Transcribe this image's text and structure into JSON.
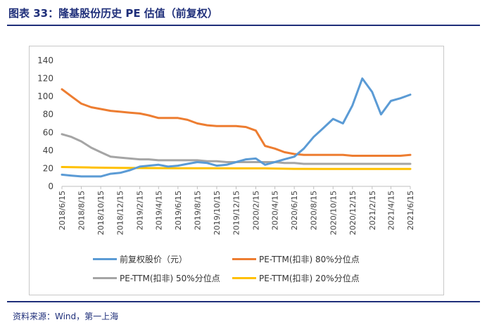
{
  "title": "图表 33：隆基股份历史 PE 估值（前复权）",
  "source": "资料来源：Wind，第一上海",
  "chart_data": {
    "type": "line",
    "title": "",
    "xlabel": "",
    "ylabel": "",
    "ylim": [
      0,
      140
    ],
    "yticks": [
      0,
      20,
      40,
      60,
      80,
      100,
      120,
      140
    ],
    "grid": false,
    "legend_position": "bottom",
    "x_ticks": [
      "2018/6/15",
      "2018/8/15",
      "2018/10/15",
      "2018/12/15",
      "2019/2/15",
      "2019/4/15",
      "2019/6/15",
      "2019/8/15",
      "2019/10/15",
      "2019/12/15",
      "2020/2/15",
      "2020/4/15",
      "2020/6/15",
      "2020/8/15",
      "2020/10/15",
      "2020/12/15",
      "2021/2/15",
      "2021/4/15",
      "2021/6/15"
    ],
    "series": [
      {
        "name": "前复权股价（元）",
        "color": "#5b9bd5",
        "x": [
          "2018/6/15",
          "2018/7/15",
          "2018/8/15",
          "2018/9/15",
          "2018/10/15",
          "2018/11/15",
          "2018/12/15",
          "2019/1/15",
          "2019/2/15",
          "2019/3/15",
          "2019/4/15",
          "2019/5/15",
          "2019/6/15",
          "2019/7/15",
          "2019/8/15",
          "2019/9/15",
          "2019/10/15",
          "2019/11/15",
          "2019/12/15",
          "2020/1/15",
          "2020/2/15",
          "2020/3/15",
          "2020/4/15",
          "2020/5/15",
          "2020/6/15",
          "2020/7/15",
          "2020/8/15",
          "2020/9/15",
          "2020/10/15",
          "2020/11/15",
          "2020/12/15",
          "2021/1/15",
          "2021/2/15",
          "2021/3/15",
          "2021/4/15",
          "2021/5/15",
          "2021/6/15"
        ],
        "values": [
          13,
          12,
          11,
          11,
          11,
          14,
          15,
          18,
          22,
          23,
          24,
          22,
          23,
          25,
          27,
          26,
          23,
          24,
          27,
          30,
          31,
          24,
          27,
          30,
          33,
          42,
          55,
          65,
          75,
          70,
          90,
          120,
          105,
          80,
          95,
          98,
          102
        ]
      },
      {
        "name": "PE-TTM(扣非) 80%分位点",
        "color": "#ed7d31",
        "x": [
          "2018/6/15",
          "2018/7/15",
          "2018/8/15",
          "2018/9/15",
          "2018/10/15",
          "2018/11/15",
          "2018/12/15",
          "2019/1/15",
          "2019/2/15",
          "2019/3/15",
          "2019/4/15",
          "2019/5/15",
          "2019/6/15",
          "2019/7/15",
          "2019/8/15",
          "2019/9/15",
          "2019/10/15",
          "2019/11/15",
          "2019/12/15",
          "2020/1/15",
          "2020/2/15",
          "2020/3/15",
          "2020/4/15",
          "2020/5/15",
          "2020/6/15",
          "2020/7/15",
          "2020/8/15",
          "2020/9/15",
          "2020/10/15",
          "2020/11/15",
          "2020/12/15",
          "2021/1/15",
          "2021/2/15",
          "2021/3/15",
          "2021/4/15",
          "2021/5/15",
          "2021/6/15"
        ],
        "values": [
          108,
          100,
          92,
          88,
          86,
          84,
          83,
          82,
          81,
          79,
          76,
          76,
          76,
          74,
          70,
          68,
          67,
          67,
          67,
          66,
          62,
          45,
          42,
          38,
          36,
          35,
          35,
          35,
          35,
          35,
          34,
          34,
          34,
          34,
          34,
          34,
          35
        ]
      },
      {
        "name": "PE-TTM(扣非) 50%分位点",
        "color": "#a5a5a5",
        "x": [
          "2018/6/15",
          "2018/7/15",
          "2018/8/15",
          "2018/9/15",
          "2018/10/15",
          "2018/11/15",
          "2018/12/15",
          "2019/1/15",
          "2019/2/15",
          "2019/3/15",
          "2019/4/15",
          "2019/5/15",
          "2019/6/15",
          "2019/7/15",
          "2019/8/15",
          "2019/9/15",
          "2019/10/15",
          "2019/11/15",
          "2019/12/15",
          "2020/1/15",
          "2020/2/15",
          "2020/3/15",
          "2020/4/15",
          "2020/5/15",
          "2020/6/15",
          "2020/7/15",
          "2020/8/15",
          "2020/9/15",
          "2020/10/15",
          "2020/11/15",
          "2020/12/15",
          "2021/1/15",
          "2021/2/15",
          "2021/3/15",
          "2021/4/15",
          "2021/5/15",
          "2021/6/15"
        ],
        "values": [
          58,
          55,
          50,
          43,
          38,
          33,
          32,
          31,
          30,
          30,
          29,
          29,
          29,
          29,
          29,
          28,
          28,
          27,
          27,
          27,
          27,
          27,
          27,
          26,
          26,
          25,
          25,
          25,
          25,
          25,
          25,
          25,
          25,
          25,
          25,
          25,
          25
        ]
      },
      {
        "name": "PE-TTM(扣非) 20%分位点",
        "color": "#ffc000",
        "x": [
          "2018/6/15",
          "2018/9/15",
          "2018/12/15",
          "2019/3/15",
          "2019/6/15",
          "2019/9/15",
          "2019/12/15",
          "2020/3/15",
          "2020/6/15",
          "2020/9/15",
          "2020/12/15",
          "2021/3/15",
          "2021/6/15"
        ],
        "values": [
          21.5,
          21,
          20.5,
          20.3,
          20.2,
          20.1,
          20,
          20,
          19.5,
          19.4,
          19.4,
          19.4,
          19.4
        ]
      }
    ]
  }
}
